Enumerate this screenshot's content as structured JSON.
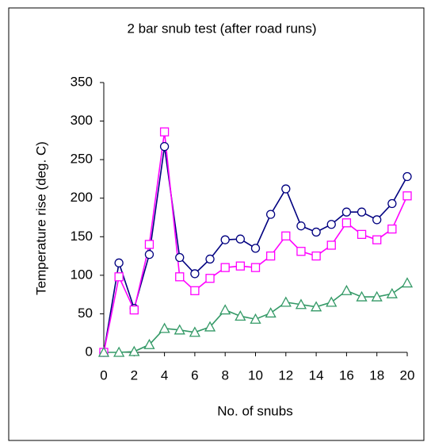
{
  "chart_data": {
    "type": "line",
    "title": "2 bar snub test (after road runs)",
    "xlabel": "No. of snubs",
    "ylabel": "Temperature rise (deg. C)",
    "x": [
      0,
      1,
      2,
      3,
      4,
      5,
      6,
      7,
      8,
      9,
      10,
      11,
      12,
      13,
      14,
      15,
      16,
      17,
      18,
      19,
      20
    ],
    "series": [
      {
        "color": "#000080",
        "marker": "circle",
        "values": [
          0,
          116,
          57,
          127,
          267,
          123,
          102,
          121,
          146,
          147,
          135,
          179,
          212,
          164,
          156,
          166,
          182,
          182,
          172,
          193,
          228
        ]
      },
      {
        "color": "#ff00ff",
        "marker": "square",
        "values": [
          0,
          98,
          55,
          140,
          286,
          98,
          80,
          96,
          110,
          112,
          110,
          125,
          151,
          131,
          125,
          139,
          168,
          153,
          146,
          160,
          203
        ]
      },
      {
        "color": "#339966",
        "marker": "triangle",
        "values": [
          0,
          0,
          1,
          10,
          31,
          29,
          26,
          33,
          55,
          47,
          43,
          51,
          65,
          62,
          59,
          65,
          80,
          72,
          72,
          76,
          90
        ]
      }
    ],
    "xlim": [
      0,
      20
    ],
    "xticks": [
      0,
      2,
      4,
      6,
      8,
      10,
      12,
      14,
      16,
      18,
      20
    ],
    "ylim": [
      0,
      350
    ],
    "yticks": [
      0,
      50,
      100,
      150,
      200,
      250,
      300,
      350
    ],
    "grid": false
  }
}
